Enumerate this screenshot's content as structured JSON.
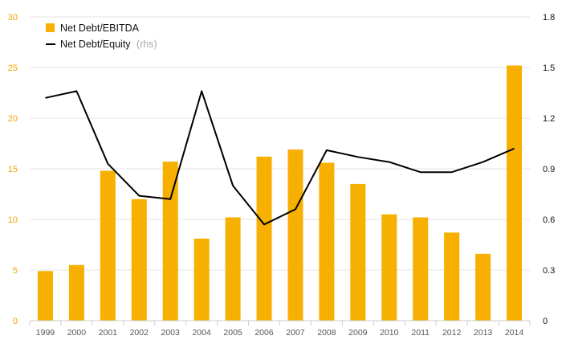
{
  "chart_data": {
    "type": "bar+line",
    "categories": [
      "1999",
      "2000",
      "2001",
      "2002",
      "2003",
      "2004",
      "2005",
      "2006",
      "2007",
      "2008",
      "2009",
      "2010",
      "2011",
      "2012",
      "2013",
      "2014"
    ],
    "series": [
      {
        "name": "Net Debt/EBITDA",
        "type": "bar",
        "axis": "left",
        "color": "#f7b000",
        "values": [
          4.9,
          5.5,
          14.8,
          12.0,
          15.7,
          8.1,
          10.2,
          16.2,
          16.9,
          15.6,
          13.5,
          10.5,
          10.2,
          8.7,
          6.6,
          25.2
        ]
      },
      {
        "name": "Net Debt/Equity",
        "note": "(rhs)",
        "type": "line",
        "axis": "right",
        "color": "#000000",
        "values": [
          1.32,
          1.36,
          0.93,
          0.74,
          0.72,
          1.36,
          0.8,
          0.57,
          0.66,
          1.01,
          0.97,
          0.94,
          0.88,
          0.88,
          0.94,
          1.02
        ]
      }
    ],
    "y_left": {
      "min": 0,
      "max": 30,
      "ticks": [
        "0",
        "5",
        "10",
        "15",
        "20",
        "25",
        "30"
      ],
      "color": "#f0a500"
    },
    "y_right": {
      "min": 0,
      "max": 1.8,
      "ticks": [
        "0",
        "0.3",
        "0.6",
        "0.9",
        "1.2",
        "1.5",
        "1.8"
      ],
      "color": "#111111"
    },
    "grid": true,
    "legend_position": "top-left"
  }
}
